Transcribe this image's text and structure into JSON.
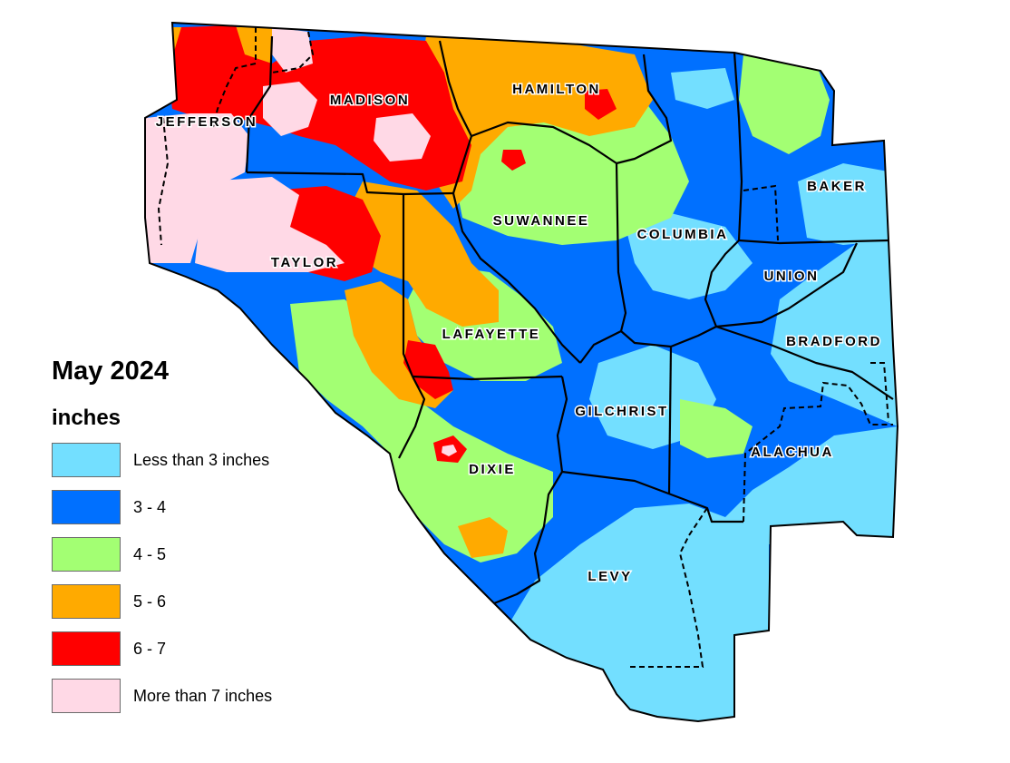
{
  "legend": {
    "title": "May 2024",
    "units": "inches",
    "items": [
      {
        "label": "Less than 3 inches",
        "color": "#73DFFF"
      },
      {
        "label": "3 - 4",
        "color": "#0070FF"
      },
      {
        "label": "4 - 5",
        "color": "#A3FF73"
      },
      {
        "label": "5 - 6",
        "color": "#FFAA00"
      },
      {
        "label": "6 - 7",
        "color": "#FF0000"
      },
      {
        "label": "More than 7 inches",
        "color": "#FFD9E6"
      }
    ]
  },
  "counties": [
    {
      "id": "jefferson",
      "name": "JEFFERSON"
    },
    {
      "id": "madison",
      "name": "MADISON"
    },
    {
      "id": "hamilton",
      "name": "HAMILTON"
    },
    {
      "id": "taylor",
      "name": "TAYLOR"
    },
    {
      "id": "suwannee",
      "name": "SUWANNEE"
    },
    {
      "id": "columbia",
      "name": "COLUMBIA"
    },
    {
      "id": "baker",
      "name": "BAKER"
    },
    {
      "id": "union",
      "name": "UNION"
    },
    {
      "id": "bradford",
      "name": "BRADFORD"
    },
    {
      "id": "lafayette",
      "name": "LAFAYETTE"
    },
    {
      "id": "gilchrist",
      "name": "GILCHRIST"
    },
    {
      "id": "alachua",
      "name": "ALACHUA"
    },
    {
      "id": "dixie",
      "name": "DIXIE"
    },
    {
      "id": "levy",
      "name": "LEVY"
    }
  ]
}
